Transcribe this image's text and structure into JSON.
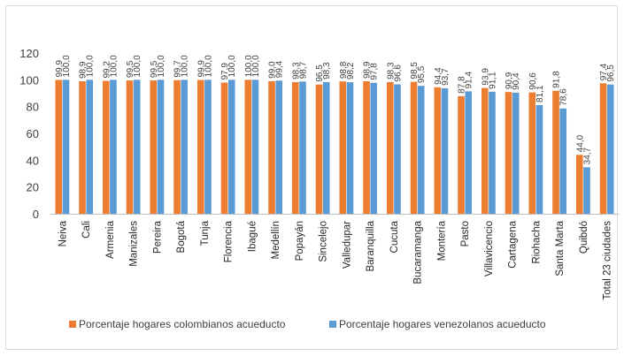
{
  "chart_data": {
    "type": "bar",
    "categories": [
      "Neiva",
      "Cali",
      "Armenia",
      "Manizales",
      "Pereira",
      "Bogotá",
      "Tunja",
      "Florencia",
      "Ibagué",
      "Medellín",
      "Popayán",
      "Sincelejo",
      "Valledupar",
      "Baranquilla",
      "Cucuta",
      "Bucaramanga",
      "Montería",
      "Pasto",
      "Villavicencio",
      "Cartagena",
      "Riohacha",
      "Santa Marta",
      "Quibdó",
      "Total 23 ciudades"
    ],
    "series": [
      {
        "name": "Porcentaje hogares colombianos acueducto",
        "color": "#ed7d31",
        "values": [
          99.9,
          98.9,
          99.2,
          99.5,
          99.5,
          99.7,
          99.9,
          97.9,
          100.0,
          99.0,
          98.3,
          96.5,
          98.8,
          98.9,
          98.3,
          98.5,
          94.4,
          87.8,
          93.9,
          90.9,
          90.6,
          91.8,
          44.0,
          97.4
        ],
        "labels": [
          "99,9",
          "98,9",
          "99,2",
          "99,5",
          "99,5",
          "99,7",
          "99,9",
          "97,9",
          "100,0",
          "99,0",
          "98,3",
          "96,5",
          "98,8",
          "98,9",
          "98,3",
          "98,5",
          "94,4",
          "87,8",
          "93,9",
          "90,9",
          "90,6",
          "91,8",
          "44,0",
          "97,4"
        ]
      },
      {
        "name": "Porcentaje hogares venezolanos acueducto",
        "color": "#5b9bd5",
        "values": [
          100.0,
          100.0,
          100.0,
          100.0,
          100.0,
          100.0,
          100.0,
          100.0,
          100.0,
          99.4,
          98.7,
          98.3,
          98.2,
          97.8,
          96.6,
          95.5,
          93.7,
          91.4,
          91.1,
          90.4,
          81.1,
          78.6,
          34.7,
          96.5
        ],
        "labels": [
          "100,0",
          "100,0",
          "100,0",
          "100,0",
          "100,0",
          "100,0",
          "100,0",
          "100,0",
          "100,0",
          "99,4",
          "98,7",
          "98,3",
          "98,2",
          "97,8",
          "96,6",
          "95,5",
          "93,7",
          "91,4",
          "91,1",
          "90,4",
          "81,1",
          "78,6",
          "34,7",
          "96,5"
        ]
      }
    ],
    "yticks": [
      "0",
      "20",
      "40",
      "60",
      "80",
      "100",
      "120"
    ],
    "ylim": [
      0,
      120
    ],
    "grid": false,
    "legend": "bottom"
  }
}
